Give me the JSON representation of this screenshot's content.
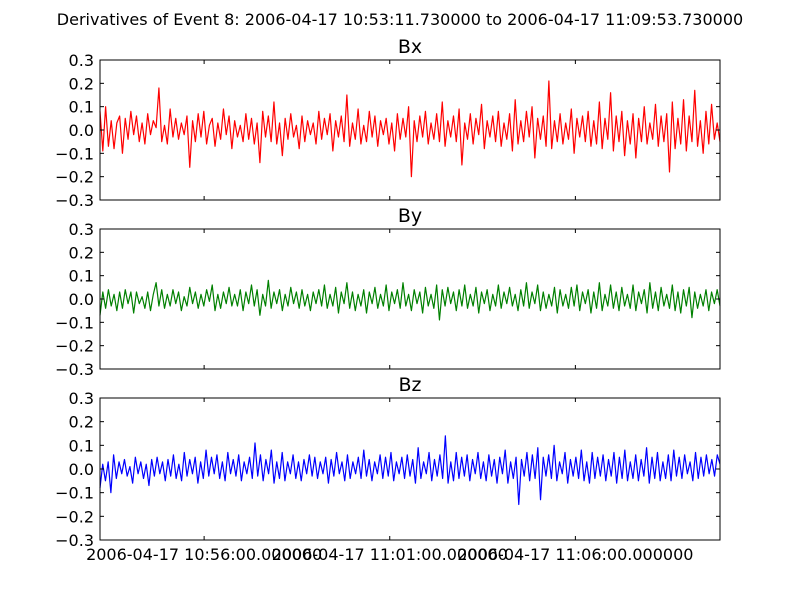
{
  "figure": {
    "suptitle": "Derivatives of Event 8: 2006-04-17 10:53:11.730000 to 2006-04-17 11:09:53.730000"
  },
  "chart_data": [
    {
      "type": "line",
      "title": "Bx",
      "color": "#ff0000",
      "ylim": [
        -0.3,
        0.3
      ],
      "yticks": [
        "0.3",
        "0.2",
        "0.1",
        "0.0",
        "−0.1",
        "−0.2",
        "−0.3"
      ],
      "xlim": [
        "2006-04-17 10:53:11.730000",
        "2006-04-17 11:09:53.730000"
      ],
      "series": [
        {
          "x_start": "2006-04-17 10:53:11.730000",
          "x_end": "2006-04-17 11:09:53.730000",
          "values": [
            0.08,
            -0.09,
            0.1,
            -0.07,
            0.04,
            -0.08,
            0.03,
            0.06,
            -0.1,
            0.05,
            -0.04,
            0.08,
            -0.02,
            0.06,
            -0.05,
            0.03,
            -0.06,
            0.07,
            -0.02,
            0.04,
            0.01,
            0.18,
            -0.05,
            0.02,
            -0.06,
            0.09,
            -0.03,
            0.05,
            -0.04,
            0.03,
            -0.02,
            0.06,
            -0.16,
            0.04,
            -0.05,
            0.07,
            -0.03,
            0.08,
            -0.06,
            0.02,
            0.05,
            -0.07,
            0.03,
            -0.04,
            0.09,
            -0.02,
            0.06,
            -0.08,
            0.04,
            -0.03,
            0.02,
            -0.05,
            0.07,
            -0.04,
            0.05,
            -0.06,
            0.03,
            -0.14,
            0.08,
            -0.03,
            0.06,
            -0.05,
            0.12,
            -0.06,
            0.03,
            -0.11,
            0.05,
            -0.04,
            0.07,
            -0.03,
            0.02,
            -0.08,
            0.06,
            -0.05,
            0.04,
            -0.02,
            0.03,
            -0.06,
            0.08,
            -0.04,
            0.05,
            -0.02,
            0.07,
            -0.09,
            0.04,
            -0.03,
            0.06,
            -0.05,
            0.15,
            -0.07,
            0.03,
            -0.04,
            0.09,
            -0.06,
            0.02,
            -0.05,
            0.08,
            -0.03,
            0.06,
            -0.07,
            0.04,
            -0.02,
            0.05,
            -0.06,
            0.03,
            -0.09,
            0.07,
            -0.04,
            0.05,
            -0.03,
            0.1,
            -0.2,
            0.04,
            -0.05,
            0.06,
            -0.03,
            0.08,
            -0.06,
            0.03,
            -0.04,
            0.07,
            -0.05,
            0.12,
            -0.07,
            0.04,
            -0.03,
            0.06,
            -0.05,
            0.09,
            -0.15,
            0.03,
            -0.04,
            0.07,
            -0.06,
            0.05,
            -0.02,
            0.11,
            -0.08,
            0.04,
            -0.03,
            0.06,
            -0.05,
            0.08,
            -0.07,
            0.03,
            -0.04,
            0.07,
            -0.09,
            0.13,
            -0.06,
            0.04,
            -0.05,
            0.08,
            -0.03,
            0.1,
            -0.12,
            0.05,
            -0.04,
            0.06,
            -0.07,
            0.21,
            -0.08,
            0.04,
            -0.05,
            0.07,
            -0.06,
            0.03,
            -0.04,
            0.09,
            -0.1,
            0.05,
            -0.03,
            0.06,
            -0.05,
            0.08,
            -0.07,
            0.04,
            -0.06,
            0.12,
            -0.08,
            0.05,
            -0.04,
            0.16,
            -0.09,
            0.06,
            -0.05,
            0.08,
            -0.11,
            0.04,
            -0.06,
            0.07,
            -0.12,
            0.05,
            -0.05,
            0.1,
            -0.06,
            0.03,
            -0.04,
            0.11,
            -0.07,
            0.06,
            -0.05,
            0.07,
            -0.18,
            0.12,
            -0.08,
            0.05,
            -0.06,
            0.13,
            -0.09,
            0.06,
            -0.05,
            0.17,
            -0.07,
            0.04,
            -0.1,
            0.08,
            -0.06,
            0.11,
            -0.04,
            0.03,
            -0.05
          ]
        }
      ]
    },
    {
      "type": "line",
      "title": "By",
      "color": "#008000",
      "ylim": [
        -0.3,
        0.3
      ],
      "yticks": [
        "0.3",
        "0.2",
        "0.1",
        "0.0",
        "−0.1",
        "−0.2",
        "−0.3"
      ],
      "xlim": [
        "2006-04-17 10:53:11.730000",
        "2006-04-17 11:09:53.730000"
      ],
      "series": [
        {
          "x_start": "2006-04-17 10:53:11.730000",
          "x_end": "2006-04-17 11:09:53.730000",
          "values": [
            -0.07,
            0.03,
            -0.04,
            0.04,
            -0.03,
            0.02,
            -0.05,
            0.03,
            -0.04,
            0.04,
            -0.02,
            0.03,
            -0.06,
            0.03,
            -0.02,
            0.01,
            -0.04,
            0.03,
            -0.05,
            0.02,
            0.07,
            -0.03,
            0.04,
            -0.04,
            0.02,
            -0.03,
            0.04,
            -0.02,
            0.03,
            -0.05,
            0.01,
            -0.03,
            0.05,
            -0.02,
            0.03,
            -0.04,
            0.02,
            -0.03,
            0.04,
            -0.01,
            0.06,
            -0.05,
            0.02,
            -0.04,
            0.03,
            -0.02,
            0.05,
            -0.03,
            0.02,
            -0.03,
            0.04,
            -0.05,
            0.03,
            -0.02,
            0.06,
            -0.03,
            0.04,
            -0.07,
            0.02,
            -0.03,
            0.08,
            -0.04,
            0.03,
            -0.02,
            0.04,
            -0.05,
            0.02,
            -0.03,
            0.05,
            -0.02,
            0.03,
            -0.04,
            0.04,
            -0.03,
            0.02,
            -0.05,
            0.03,
            -0.02,
            0.04,
            -0.03,
            0.06,
            -0.04,
            0.02,
            -0.03,
            0.05,
            -0.06,
            0.03,
            -0.02,
            0.07,
            -0.04,
            0.03,
            -0.05,
            0.02,
            -0.03,
            0.04,
            -0.06,
            0.03,
            -0.02,
            0.05,
            -0.04,
            0.02,
            -0.03,
            0.06,
            -0.05,
            0.03,
            -0.02,
            0.04,
            -0.04,
            0.07,
            -0.03,
            0.02,
            -0.05,
            0.04,
            -0.02,
            0.03,
            -0.06,
            0.05,
            -0.03,
            0.02,
            -0.04,
            0.06,
            -0.09,
            0.04,
            -0.03,
            0.05,
            -0.02,
            0.03,
            -0.05,
            0.04,
            -0.03,
            0.06,
            -0.04,
            0.02,
            -0.03,
            0.05,
            -0.06,
            0.03,
            -0.02,
            0.04,
            -0.05,
            0.02,
            -0.03,
            0.06,
            -0.04,
            0.03,
            -0.02,
            0.05,
            -0.03,
            0.02,
            -0.05,
            0.04,
            -0.03,
            0.07,
            -0.04,
            0.03,
            -0.02,
            0.06,
            -0.05,
            0.03,
            -0.04,
            0.02,
            -0.03,
            0.05,
            -0.06,
            0.04,
            -0.03,
            0.02,
            -0.04,
            0.05,
            -0.03,
            0.06,
            -0.05,
            0.03,
            -0.02,
            0.04,
            -0.06,
            0.03,
            -0.04,
            0.07,
            -0.05,
            0.02,
            -0.03,
            0.06,
            -0.04,
            0.03,
            -0.05,
            0.05,
            -0.03,
            0.02,
            -0.04,
            0.06,
            -0.05,
            0.03,
            -0.02,
            0.04,
            -0.06,
            0.07,
            -0.04,
            0.03,
            -0.05,
            0.05,
            -0.03,
            0.02,
            -0.04,
            0.06,
            -0.05,
            0.03,
            -0.06,
            0.04,
            -0.03,
            0.05,
            -0.08,
            0.03,
            -0.04,
            0.02,
            -0.03,
            0.04,
            -0.05,
            0.03,
            -0.02,
            0.04,
            -0.03
          ]
        }
      ]
    },
    {
      "type": "line",
      "title": "Bz",
      "color": "#0000ff",
      "ylim": [
        -0.3,
        0.3
      ],
      "yticks": [
        "0.3",
        "0.2",
        "0.1",
        "0.0",
        "−0.1",
        "−0.2",
        "−0.3"
      ],
      "xlim": [
        "2006-04-17 10:53:11.730000",
        "2006-04-17 11:09:53.730000"
      ],
      "xticks": [
        "2006-04-17 10:56:00.000000",
        "2006-04-17 11:01:00.000000",
        "2006-04-17 11:06:00.000000"
      ],
      "series": [
        {
          "x_start": "2006-04-17 10:53:11.730000",
          "x_end": "2006-04-17 11:09:53.730000",
          "values": [
            -0.08,
            0.02,
            -0.05,
            0.03,
            -0.1,
            0.06,
            -0.04,
            0.03,
            -0.02,
            0.04,
            -0.03,
            0.01,
            -0.06,
            0.05,
            -0.02,
            0.03,
            -0.04,
            0.02,
            -0.07,
            0.04,
            -0.03,
            0.05,
            -0.02,
            0.03,
            -0.05,
            0.04,
            -0.03,
            0.06,
            -0.04,
            0.02,
            -0.05,
            0.07,
            -0.03,
            0.04,
            -0.02,
            0.05,
            -0.06,
            0.03,
            -0.04,
            0.08,
            -0.03,
            0.05,
            -0.02,
            0.06,
            -0.04,
            0.03,
            -0.05,
            0.07,
            -0.02,
            0.04,
            -0.03,
            0.06,
            -0.05,
            0.03,
            -0.02,
            0.05,
            -0.04,
            0.11,
            -0.03,
            0.06,
            -0.05,
            0.04,
            -0.02,
            0.08,
            -0.06,
            0.03,
            -0.04,
            0.07,
            -0.05,
            0.03,
            -0.02,
            0.06,
            -0.04,
            0.03,
            -0.05,
            0.04,
            -0.02,
            0.06,
            -0.03,
            0.05,
            -0.04,
            0.03,
            -0.02,
            0.05,
            -0.06,
            0.04,
            -0.03,
            0.07,
            -0.02,
            0.03,
            -0.05,
            0.06,
            -0.04,
            0.03,
            -0.02,
            0.05,
            -0.04,
            0.08,
            -0.03,
            0.04,
            -0.05,
            0.03,
            -0.02,
            0.06,
            -0.04,
            0.05,
            -0.03,
            0.07,
            -0.05,
            0.03,
            -0.02,
            0.05,
            -0.04,
            0.06,
            -0.03,
            0.04,
            -0.06,
            0.09,
            -0.04,
            0.03,
            -0.02,
            0.07,
            -0.05,
            0.04,
            -0.03,
            0.06,
            -0.04,
            0.14,
            -0.06,
            0.03,
            -0.05,
            0.07,
            -0.04,
            0.05,
            -0.03,
            0.06,
            -0.05,
            0.04,
            -0.02,
            0.07,
            -0.04,
            0.03,
            -0.05,
            0.06,
            -0.03,
            0.04,
            -0.06,
            0.05,
            -0.02,
            0.08,
            -0.06,
            0.03,
            -0.04,
            0.05,
            -0.15,
            0.04,
            -0.03,
            0.07,
            -0.05,
            0.06,
            -0.04,
            0.09,
            -0.13,
            0.05,
            -0.03,
            0.06,
            -0.04,
            0.1,
            -0.05,
            0.03,
            -0.02,
            0.07,
            -0.06,
            0.04,
            -0.03,
            0.05,
            -0.04,
            0.08,
            -0.05,
            0.03,
            -0.06,
            0.07,
            -0.04,
            0.05,
            -0.03,
            0.06,
            -0.05,
            0.04,
            -0.03,
            0.07,
            -0.06,
            0.05,
            -0.04,
            0.08,
            -0.05,
            0.03,
            -0.04,
            0.06,
            -0.05,
            0.04,
            -0.03,
            0.09,
            -0.06,
            0.05,
            -0.04,
            0.07,
            -0.05,
            0.03,
            -0.04,
            0.06,
            -0.05,
            0.08,
            -0.03,
            0.05,
            -0.04,
            0.06,
            -0.02,
            0.03,
            -0.05,
            0.07,
            -0.04,
            0.05,
            -0.03,
            0.06,
            -0.02,
            0.04,
            -0.03,
            0.06,
            0.02
          ]
        }
      ]
    }
  ]
}
